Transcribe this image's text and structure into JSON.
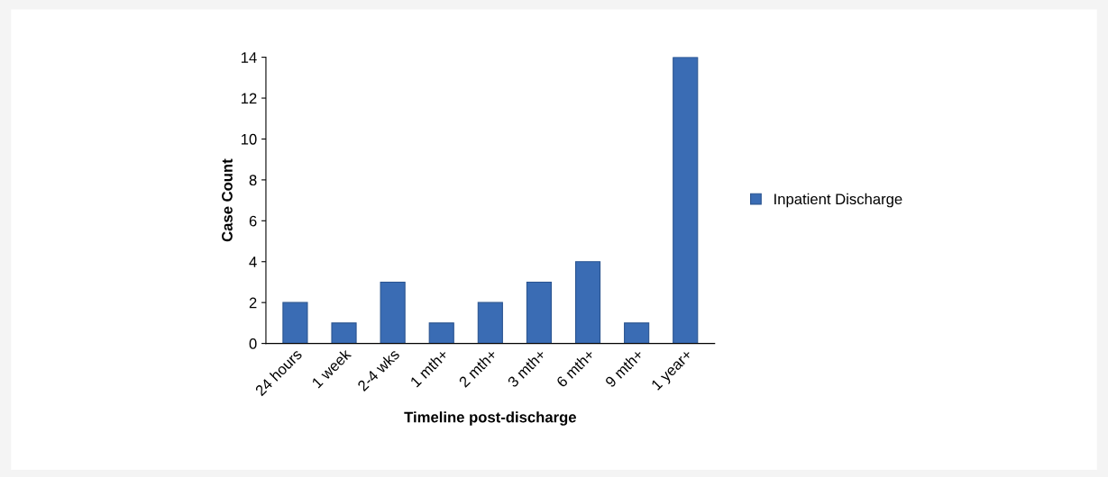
{
  "chart_data": {
    "type": "bar",
    "xlabel": "Timeline post-discharge",
    "ylabel": "Case Count",
    "categories": [
      "24 hours",
      "1 week",
      "2-4 wks",
      "1 mth+",
      "2 mth+",
      "3 mth+",
      "6 mth+",
      "9 mth+",
      "1 year+"
    ],
    "series": [
      {
        "name": "Inpatient Discharge",
        "color": "#3a6cb4",
        "values": [
          2,
          1,
          3,
          1,
          2,
          3,
          4,
          1,
          14
        ]
      }
    ],
    "ylim": [
      0,
      14
    ],
    "yticks": [
      0,
      2,
      4,
      6,
      8,
      10,
      12,
      14
    ],
    "grid": false,
    "legend": "right"
  }
}
